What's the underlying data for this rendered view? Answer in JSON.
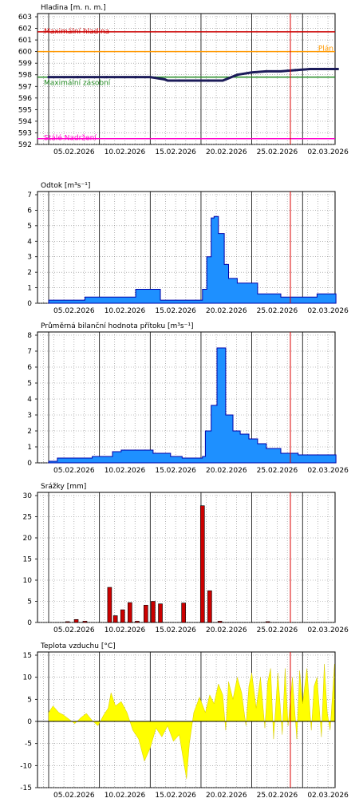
{
  "x_labels": [
    "05.02.2026",
    "10.02.2026",
    "15.02.2026",
    "20.02.2026",
    "25.02.2026",
    "02.03.2026"
  ],
  "chart_data": [
    {
      "type": "line",
      "title": "Hladina [m. n. m.]",
      "ylim": [
        592,
        603
      ],
      "yticks": [
        592,
        593,
        594,
        595,
        596,
        597,
        598,
        599,
        600,
        601,
        602,
        603
      ],
      "x": [
        0,
        10,
        20,
        30,
        40,
        50,
        60,
        70,
        80,
        82,
        90,
        100,
        110,
        120,
        130,
        140,
        150,
        160,
        170,
        180,
        190,
        200
      ],
      "values": [
        597.8,
        597.8,
        597.8,
        597.8,
        597.8,
        597.8,
        597.8,
        597.8,
        597.6,
        597.5,
        597.5,
        597.5,
        597.5,
        597.5,
        598.0,
        598.2,
        598.3,
        598.3,
        598.4,
        598.5,
        598.5,
        598.5
      ],
      "thresholds": [
        {
          "label": "Maximální hladina",
          "value": 601.7,
          "color": "#cc0000"
        },
        {
          "label": "Plán",
          "value": 600.0,
          "color": "#ff9900"
        },
        {
          "label": "Maximální zásobní",
          "value": 597.8,
          "color": "#228b22"
        },
        {
          "label": "Stálé Nadržení",
          "value": 592.5,
          "color": "#ff00cc"
        }
      ],
      "line_color": "#1c1c5a"
    },
    {
      "type": "area",
      "title": "Odtok [m³s⁻¹]",
      "ylim": [
        0,
        7
      ],
      "yticks": [
        0,
        1,
        2,
        3,
        4,
        5,
        6,
        7
      ],
      "x": [
        0,
        14,
        25,
        40,
        60,
        74,
        77,
        98,
        106,
        109,
        112,
        114,
        117,
        121,
        124,
        130,
        136,
        144,
        160,
        174,
        185,
        189,
        198
      ],
      "values": [
        0.2,
        0.2,
        0.4,
        0.4,
        0.9,
        0.9,
        0.2,
        0.2,
        0.9,
        3.0,
        5.5,
        5.6,
        4.5,
        2.5,
        1.6,
        1.3,
        1.3,
        0.6,
        0.4,
        0.4,
        0.6,
        0.6,
        0.2
      ],
      "color": "#1e90ff"
    },
    {
      "type": "area",
      "title": "Průměrná bilanční hodnota přítoku [m³s⁻¹]",
      "ylim": [
        0,
        8
      ],
      "yticks": [
        0,
        1,
        2,
        3,
        4,
        5,
        6,
        7,
        8
      ],
      "x": [
        0,
        6,
        14,
        30,
        44,
        50,
        60,
        72,
        84,
        92,
        100,
        106,
        108,
        112,
        116,
        118,
        122,
        127,
        132,
        138,
        144,
        150,
        160,
        172,
        184,
        198
      ],
      "values": [
        0.1,
        0.3,
        0.3,
        0.4,
        0.7,
        0.8,
        0.8,
        0.6,
        0.4,
        0.3,
        0.3,
        0.4,
        2.0,
        3.6,
        7.2,
        7.2,
        3.0,
        2.0,
        1.8,
        1.5,
        1.2,
        0.9,
        0.6,
        0.5,
        0.5,
        0.1
      ],
      "color": "#1e90ff"
    },
    {
      "type": "bar",
      "title": "Srážky [mm]",
      "ylim": [
        0,
        30
      ],
      "yticks": [
        0,
        5,
        10,
        15,
        20,
        25,
        30
      ],
      "x": [
        13,
        19,
        25,
        42,
        46,
        51,
        56,
        61,
        67,
        72,
        77,
        93,
        106,
        111,
        118,
        151
      ],
      "values": [
        0.2,
        0.7,
        0.3,
        8.3,
        1.6,
        3.0,
        4.7,
        0.3,
        4.1,
        5.0,
        4.4,
        4.6,
        27.6,
        7.5,
        0.3,
        0.2
      ],
      "color": "#cc0000"
    },
    {
      "type": "area",
      "title": "Teplota vzduchu [°C]",
      "ylim": [
        -15,
        15
      ],
      "yticks": [
        -15,
        -10,
        -5,
        0,
        5,
        10,
        15
      ],
      "x": [
        0,
        3,
        7,
        10,
        14,
        18,
        22,
        26,
        30,
        34,
        38,
        41,
        43,
        46,
        50,
        54,
        58,
        62,
        66,
        70,
        74,
        78,
        82,
        86,
        90,
        93,
        95,
        97,
        100,
        104,
        108,
        111,
        114,
        117,
        120,
        122,
        124,
        127,
        130,
        133,
        136,
        138,
        140,
        143,
        146,
        149,
        151,
        153,
        155,
        158,
        161,
        163,
        165,
        168,
        171,
        173,
        175,
        178,
        181,
        183,
        185,
        188,
        190,
        192,
        194,
        197
      ],
      "values": [
        2.0,
        3.5,
        2.0,
        1.5,
        0.5,
        -0.5,
        0.8,
        1.8,
        0.2,
        -1.0,
        1.5,
        3.0,
        6.5,
        3.5,
        4.5,
        2.0,
        -2.0,
        -4.0,
        -9.0,
        -6.0,
        -1.5,
        -3.5,
        -1.0,
        -4.5,
        -3.0,
        -9.0,
        -13.0,
        -5.0,
        2.0,
        5.5,
        2.0,
        6.0,
        4.0,
        8.5,
        6.0,
        -2.0,
        9.0,
        5.0,
        10.0,
        6.5,
        -1.0,
        8.0,
        11.0,
        3.0,
        10.0,
        -1.5,
        9.0,
        12.0,
        -4.0,
        11.0,
        -3.0,
        12.0,
        -1.0,
        10.0,
        -4.0,
        11.5,
        4.0,
        12.0,
        -2.0,
        8.0,
        10.0,
        -3.5,
        13.0,
        2.0,
        -2.0,
        13.0
      ],
      "color": "#ffff00"
    }
  ]
}
